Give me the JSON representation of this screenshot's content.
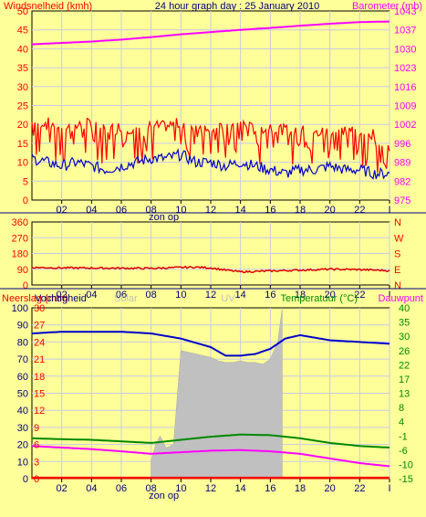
{
  "chart_data": [
    {
      "type": "line",
      "title": "24 hour graph day : 25 January 2010",
      "left_label": "Windsnelheid (kmh)",
      "right_label": "Barometer (mb)",
      "sunrise_label": "zon op",
      "x_ticks": [
        "02",
        "04",
        "06",
        "08",
        "10",
        "12",
        "14",
        "16",
        "18",
        "20",
        "22",
        "I"
      ],
      "left_ticks": [
        "0",
        "5",
        "10",
        "15",
        "20",
        "25",
        "30",
        "35",
        "40",
        "45",
        "50"
      ],
      "right_ticks": [
        "975",
        "982",
        "989",
        "996",
        "1002",
        "1009",
        "1016",
        "1023",
        "1030",
        "1037",
        "1043"
      ],
      "ylim_left": [
        0,
        50
      ],
      "ylim_right": [
        975,
        1043
      ],
      "series": [
        {
          "name": "Barometer",
          "axis": "right",
          "color": "#ff00ff",
          "x": [
            0,
            2,
            4,
            6,
            8,
            10,
            12,
            14,
            16,
            18,
            20,
            22,
            24
          ],
          "values": [
            1031,
            1031.5,
            1032,
            1032.7,
            1033.6,
            1034.6,
            1035.4,
            1036.2,
            1036.9,
            1037.7,
            1038.4,
            1039,
            1039.2
          ]
        },
        {
          "name": "Windstoten",
          "axis": "left",
          "color": "#ff0000",
          "x": [
            0,
            1,
            2,
            3,
            4,
            5,
            6,
            7,
            8,
            9,
            10,
            11,
            12,
            13,
            14,
            15,
            16,
            17,
            18,
            19,
            20,
            21,
            22,
            23,
            24
          ],
          "values": [
            19,
            19,
            18,
            18,
            19,
            17,
            18,
            17,
            18,
            18,
            19,
            18,
            18,
            17,
            19,
            17,
            18,
            17,
            17,
            16,
            17,
            17,
            17,
            16,
            12
          ]
        },
        {
          "name": "Windsnelheid",
          "axis": "left",
          "color": "#0000cc",
          "x": [
            0,
            1,
            2,
            3,
            4,
            5,
            6,
            7,
            8,
            9,
            10,
            11,
            12,
            13,
            14,
            15,
            16,
            17,
            18,
            19,
            20,
            21,
            22,
            23,
            24
          ],
          "values": [
            11,
            10,
            9,
            10,
            9,
            8,
            9,
            10,
            11,
            11,
            12,
            10,
            10,
            9,
            10,
            9,
            8,
            7,
            8,
            8,
            9,
            8,
            8,
            7,
            7
          ]
        }
      ]
    },
    {
      "type": "line",
      "left_ticks": [
        "0",
        "90",
        "180",
        "270",
        "360"
      ],
      "right_ticks": [
        "N",
        "E",
        "S",
        "W",
        "N"
      ],
      "x_ticks": [
        "02",
        "04",
        "06",
        "08",
        "10",
        "12",
        "14",
        "16",
        "18",
        "20",
        "22",
        "I"
      ],
      "ylim": [
        0,
        360
      ],
      "series": [
        {
          "name": "Windrichting",
          "color": "#dd0000",
          "x": [
            0,
            2,
            4,
            6,
            8,
            10,
            11,
            12,
            13,
            14,
            16,
            18,
            20,
            22,
            24
          ],
          "values": [
            100,
            98,
            97,
            96,
            95,
            100,
            102,
            98,
            85,
            75,
            80,
            85,
            90,
            88,
            82
          ]
        }
      ]
    },
    {
      "type": "line",
      "left_label_a": "Neerslag (mm)",
      "left_label_b": "Vochtigheid",
      "label_solar": "Solar",
      "label_uv": "UV",
      "right_label_a": "Temperatuur (°C)",
      "right_label_b": "Dauwpunt",
      "sunrise_label": "zon op",
      "x_ticks": [
        "02",
        "04",
        "06",
        "08",
        "10",
        "12",
        "14",
        "16",
        "18",
        "20",
        "22",
        "I"
      ],
      "left_ticks_hum": [
        "0",
        "10",
        "20",
        "30",
        "40",
        "50",
        "60",
        "70",
        "80",
        "90",
        "100"
      ],
      "left_ticks_rain": [
        "0",
        "3",
        "6",
        "9",
        "12",
        "15",
        "18",
        "21",
        "24",
        "27",
        "30"
      ],
      "right_ticks": [
        "-15",
        "-10",
        "-6",
        "-1",
        "4",
        "8",
        "13",
        "17",
        "22",
        "26",
        "30",
        "35",
        "40"
      ],
      "ylim_humidity": [
        0,
        100
      ],
      "ylim_temperature": [
        -15,
        40
      ],
      "series": [
        {
          "name": "Vochtigheid",
          "axis": "humidity",
          "color": "#0000cc",
          "x": [
            0,
            2,
            4,
            6,
            8,
            10,
            12,
            13,
            14,
            15,
            16,
            17,
            18,
            20,
            22,
            24
          ],
          "values": [
            85,
            86,
            86,
            86,
            85,
            82,
            77,
            72,
            72,
            73,
            76,
            82,
            84,
            81,
            80,
            79
          ]
        },
        {
          "name": "Temperatuur",
          "axis": "temperature",
          "color": "#008800",
          "x": [
            0,
            2,
            4,
            6,
            8,
            10,
            12,
            14,
            16,
            18,
            20,
            22,
            24
          ],
          "values": [
            -2,
            -2.3,
            -2.5,
            -3,
            -3.5,
            -2.5,
            -1.5,
            -0.8,
            -1,
            -2,
            -3.5,
            -4.5,
            -5
          ]
        },
        {
          "name": "Dauwpunt",
          "axis": "temperature",
          "color": "#ff00ff",
          "x": [
            0,
            2,
            4,
            6,
            8,
            10,
            12,
            14,
            16,
            18,
            20,
            22,
            24
          ],
          "values": [
            -4.5,
            -5,
            -5.5,
            -6.2,
            -7,
            -6.5,
            -6,
            -5.8,
            -6.2,
            -7,
            -8.5,
            -10,
            -11
          ]
        },
        {
          "name": "Solar",
          "axis": "humidity",
          "color": "#c0c0c0",
          "x": [
            8,
            8.3,
            8.6,
            9,
            9.5,
            10,
            10.5,
            11,
            11.5,
            12,
            12.5,
            13,
            13.5,
            14,
            14.5,
            15,
            15.5,
            16,
            16.5,
            16.8
          ],
          "values": [
            10,
            20,
            25,
            18,
            20,
            75,
            74,
            73,
            72,
            71,
            69,
            68,
            68,
            69,
            68,
            68,
            67,
            70,
            80,
            100
          ]
        },
        {
          "name": "Neerslag",
          "axis": "humidity",
          "color": "#ff0000",
          "x": [
            0,
            24
          ],
          "values": [
            0.5,
            0.5
          ]
        }
      ]
    }
  ]
}
